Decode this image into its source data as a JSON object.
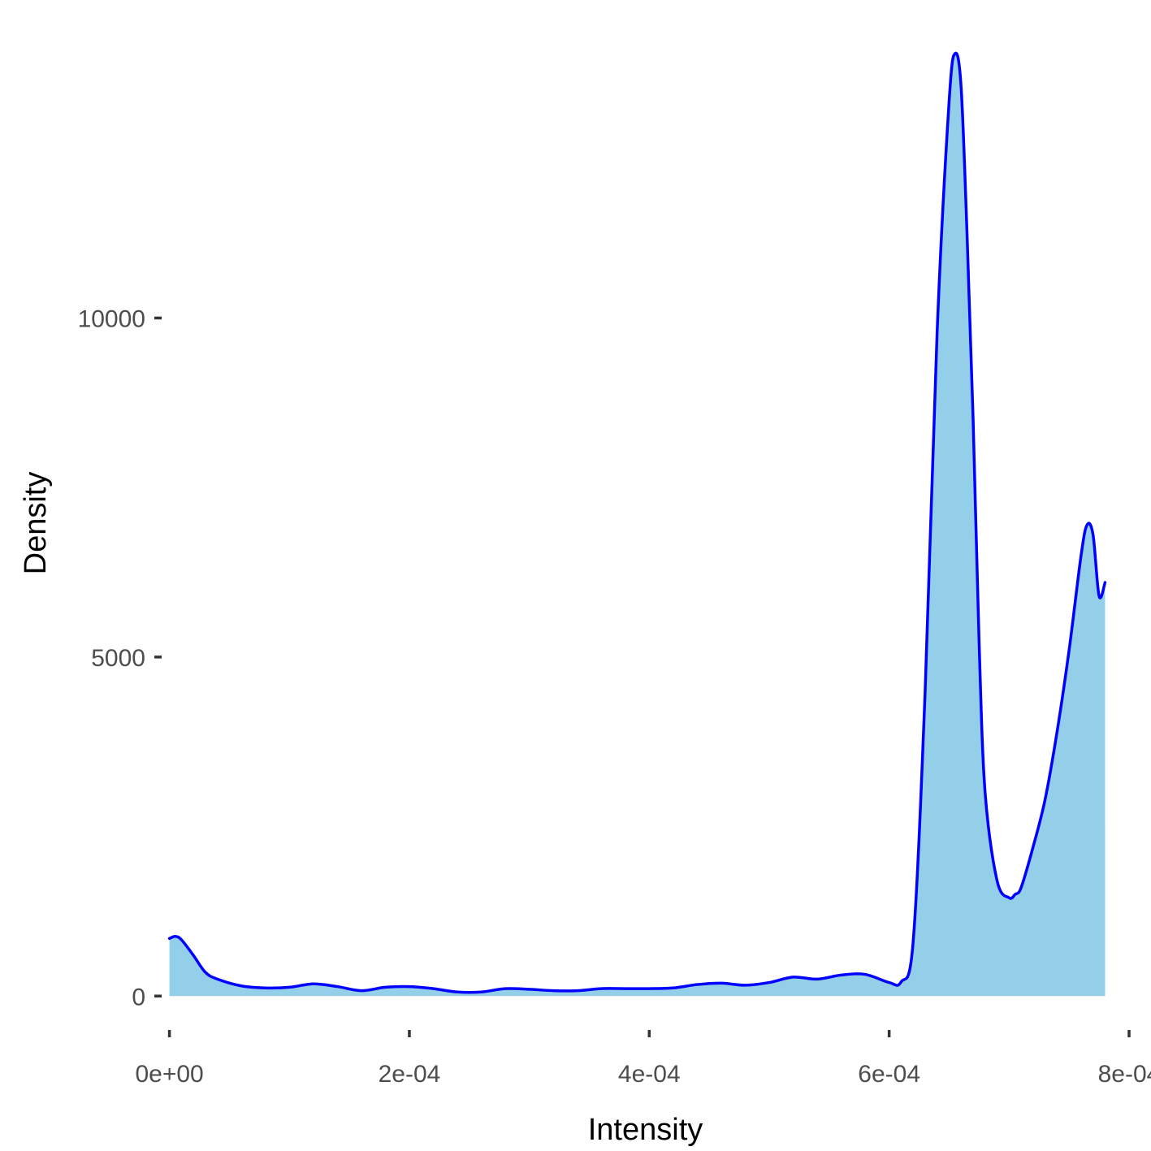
{
  "chart_data": {
    "type": "area",
    "title": "",
    "xlabel": "Intensity",
    "ylabel": "Density",
    "xlim": [
      -6.5e-06,
      0.0008
    ],
    "ylim": [
      -500,
      14450
    ],
    "x_ticks": [
      {
        "value": 0.0,
        "label": "0e+00"
      },
      {
        "value": 0.0002,
        "label": "2e-04"
      },
      {
        "value": 0.0004,
        "label": "4e-04"
      },
      {
        "value": 0.0006,
        "label": "6e-04"
      },
      {
        "value": 0.0008,
        "label": "8e-04"
      }
    ],
    "y_ticks": [
      {
        "value": 0,
        "label": "0"
      },
      {
        "value": 5000,
        "label": "5000"
      },
      {
        "value": 10000,
        "label": "10000"
      }
    ],
    "grid": false,
    "legend": "none",
    "fill_color": "#94cfea",
    "line_color": "#0000ff",
    "series": [
      {
        "x": [
          0.0,
          5e-06,
          1e-05,
          2e-05,
          3e-05,
          4e-05,
          6e-05,
          8e-05,
          0.0001,
          0.00012,
          0.00014,
          0.00016,
          0.00018,
          0.0002,
          0.00022,
          0.00024,
          0.00026,
          0.00028,
          0.0003,
          0.00032,
          0.00034,
          0.00036,
          0.00038,
          0.0004,
          0.00042,
          0.00044,
          0.00046,
          0.00048,
          0.0005,
          0.00052,
          0.00054,
          0.00056,
          0.00058,
          0.0006,
          0.00061,
          0.00062,
          0.00063,
          0.00064,
          0.00065,
          0.000655,
          0.00066,
          0.000665,
          0.00067,
          0.000675,
          0.00068,
          0.00069,
          0.0007,
          0.000705,
          0.00071,
          0.00072,
          0.00073,
          0.00074,
          0.00075,
          0.00076,
          0.000765,
          0.00077,
          0.000775,
          0.00078
        ],
        "y": [
          850,
          880,
          830,
          600,
          350,
          250,
          150,
          120,
          130,
          180,
          140,
          80,
          130,
          140,
          110,
          60,
          60,
          110,
          100,
          80,
          80,
          110,
          110,
          110,
          120,
          170,
          190,
          160,
          200,
          280,
          250,
          310,
          320,
          200,
          210,
          800,
          4500,
          9800,
          13200,
          13900,
          13400,
          11200,
          8500,
          5200,
          3000,
          1700,
          1450,
          1500,
          1600,
          2200,
          2900,
          3900,
          5100,
          6500,
          6950,
          6800,
          5900,
          6100
        ]
      }
    ]
  }
}
